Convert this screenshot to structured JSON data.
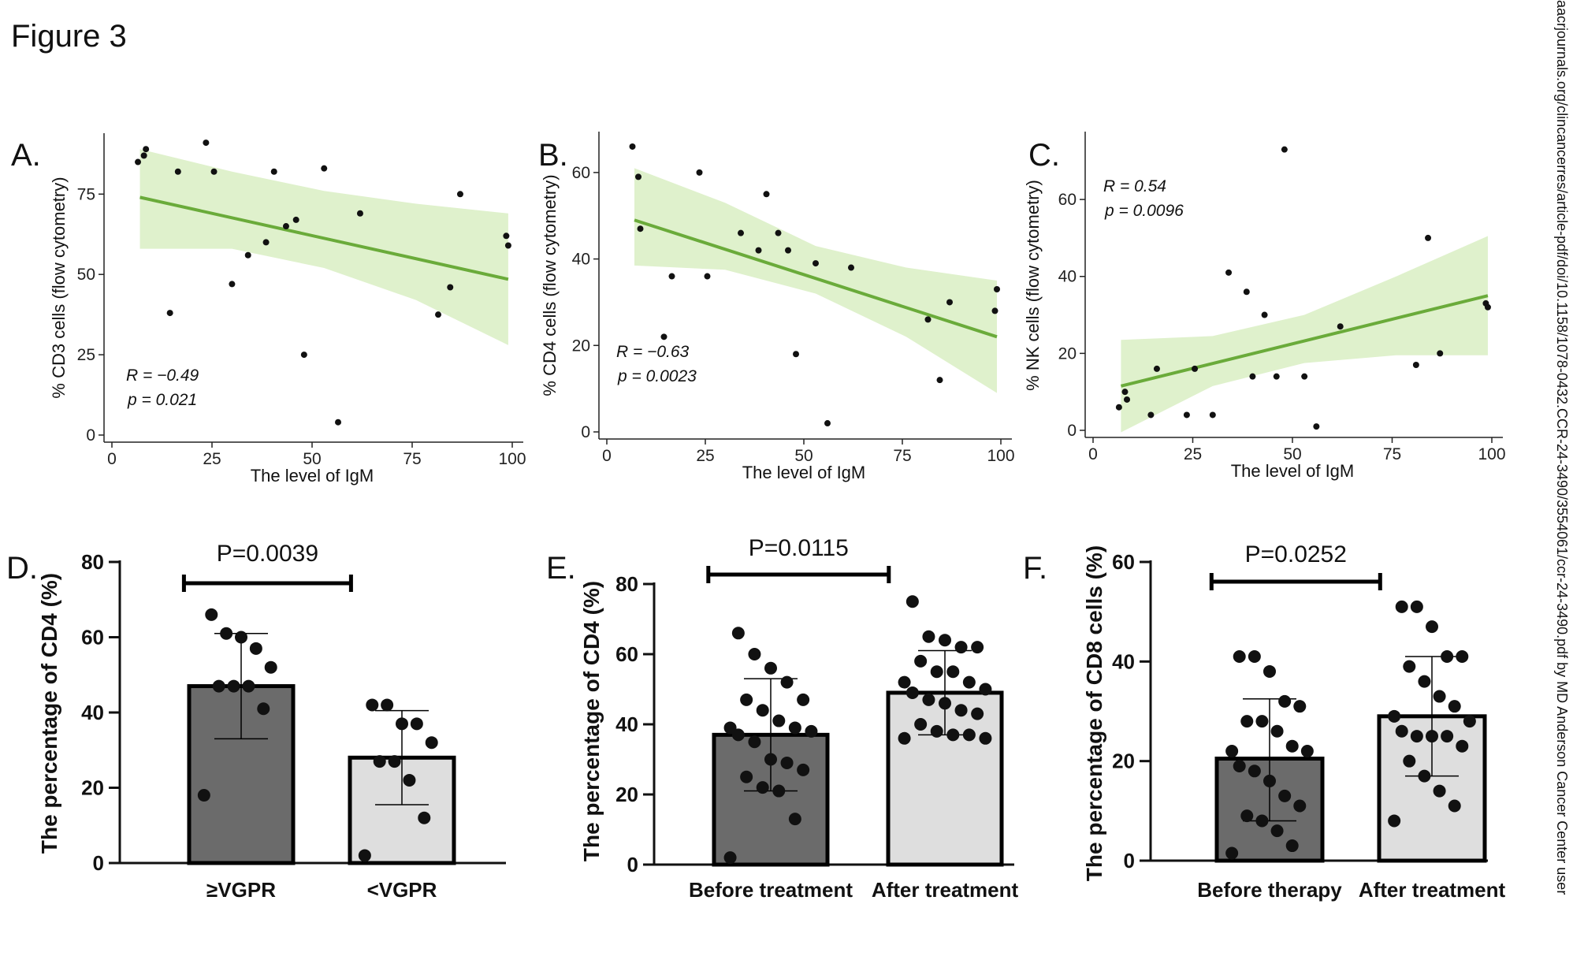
{
  "figure_title": "Figure 3",
  "watermark": "aacrjournals.org/clincancerres/article-pdf/doi/10.1158/1078-0432.CCR-24-3490/3554061/ccr-24-3490.pdf by MD Anderson Cancer Center user",
  "colors": {
    "fit_line": "#6aab3a",
    "ci_band": "#dff1cc",
    "point": "#111111",
    "bar_dark": "#6b6b6b",
    "bar_light": "#dedede"
  },
  "chart_data": [
    {
      "type": "scatter",
      "panel": "A.",
      "xlabel": "The level of IgM",
      "ylabel": "% CD3 cells (flow cytometry)",
      "xlim": [
        0,
        100
      ],
      "ylim": [
        0,
        92
      ],
      "xticks": [
        0,
        25,
        50,
        75,
        100
      ],
      "yticks": [
        0,
        25,
        50,
        75
      ],
      "stat_r": "R = −0.49",
      "stat_p": "p = 0.021",
      "fit": {
        "x": [
          7,
          99
        ],
        "y": [
          74,
          48.5
        ]
      },
      "ci_upper": [
        [
          7,
          89
        ],
        [
          30,
          82
        ],
        [
          53,
          76
        ],
        [
          76,
          72
        ],
        [
          99,
          69
        ]
      ],
      "ci_lower": [
        [
          7,
          58
        ],
        [
          30,
          58
        ],
        [
          53,
          52
        ],
        [
          76,
          42
        ],
        [
          99,
          28
        ]
      ],
      "points": [
        [
          6.5,
          85
        ],
        [
          8,
          87
        ],
        [
          8.5,
          89
        ],
        [
          14.5,
          38
        ],
        [
          16.5,
          82
        ],
        [
          23.5,
          91
        ],
        [
          25.5,
          82
        ],
        [
          30,
          47
        ],
        [
          34,
          56
        ],
        [
          38.5,
          60
        ],
        [
          40.5,
          82
        ],
        [
          43.5,
          65
        ],
        [
          46,
          67
        ],
        [
          48,
          25
        ],
        [
          53,
          83
        ],
        [
          56.5,
          4
        ],
        [
          62,
          69
        ],
        [
          81.5,
          37.5
        ],
        [
          84.5,
          46
        ],
        [
          87,
          75
        ],
        [
          98.5,
          62
        ],
        [
          99,
          59
        ]
      ]
    },
    {
      "type": "scatter",
      "panel": "B.",
      "xlabel": "The level of IgM",
      "ylabel": "% CD4 cells (flow cytometry)",
      "xlim": [
        0,
        100
      ],
      "ylim": [
        0,
        68
      ],
      "xticks": [
        0,
        25,
        50,
        75,
        100
      ],
      "yticks": [
        0,
        20,
        40,
        60
      ],
      "stat_r": "R = −0.63",
      "stat_p": "p = 0.0023",
      "fit": {
        "x": [
          7,
          99
        ],
        "y": [
          49,
          22
        ]
      },
      "ci_upper": [
        [
          7,
          61
        ],
        [
          30,
          53
        ],
        [
          53,
          43
        ],
        [
          76,
          38
        ],
        [
          99,
          35
        ]
      ],
      "ci_lower": [
        [
          7,
          38.5
        ],
        [
          30,
          37.5
        ],
        [
          53,
          32
        ],
        [
          76,
          22
        ],
        [
          99,
          9
        ]
      ],
      "points": [
        [
          6.5,
          66
        ],
        [
          8,
          59
        ],
        [
          8.5,
          47
        ],
        [
          14.5,
          22
        ],
        [
          16.5,
          36
        ],
        [
          23.5,
          60
        ],
        [
          25.5,
          36
        ],
        [
          34,
          46
        ],
        [
          38.5,
          42
        ],
        [
          40.5,
          55
        ],
        [
          43.5,
          46
        ],
        [
          46,
          42
        ],
        [
          48,
          18
        ],
        [
          53,
          39
        ],
        [
          56,
          2
        ],
        [
          62,
          38
        ],
        [
          81.5,
          26
        ],
        [
          84.5,
          12
        ],
        [
          87,
          30
        ],
        [
          98.5,
          28
        ],
        [
          99,
          33
        ]
      ]
    },
    {
      "type": "scatter",
      "panel": "C.",
      "xlabel": "The level of IgM",
      "ylabel": "% NK cells (flow cytometry)",
      "xlim": [
        0,
        100
      ],
      "ylim": [
        0,
        76
      ],
      "xticks": [
        0,
        25,
        50,
        75,
        100
      ],
      "yticks": [
        0,
        20,
        40,
        60
      ],
      "stat_r": "R = 0.54",
      "stat_p": "p = 0.0096",
      "fit": {
        "x": [
          7,
          99
        ],
        "y": [
          11.5,
          35
        ]
      },
      "ci_upper": [
        [
          7,
          23.5
        ],
        [
          30,
          24.5
        ],
        [
          53,
          30
        ],
        [
          76,
          40
        ],
        [
          99,
          50.5
        ]
      ],
      "ci_lower": [
        [
          7,
          -0.5
        ],
        [
          30,
          11.5
        ],
        [
          53,
          17.5
        ],
        [
          76,
          19.5
        ],
        [
          99,
          19.5
        ]
      ],
      "points": [
        [
          6.5,
          6
        ],
        [
          8,
          10
        ],
        [
          8.5,
          8
        ],
        [
          14.5,
          4
        ],
        [
          16,
          16
        ],
        [
          23.5,
          4
        ],
        [
          25.5,
          16
        ],
        [
          30,
          4
        ],
        [
          34,
          41
        ],
        [
          38.5,
          36
        ],
        [
          40,
          14
        ],
        [
          43,
          30
        ],
        [
          46,
          14
        ],
        [
          48,
          73
        ],
        [
          53,
          14
        ],
        [
          56,
          1
        ],
        [
          62,
          27
        ],
        [
          81,
          17
        ],
        [
          84,
          50
        ],
        [
          87,
          20
        ],
        [
          98.5,
          33
        ],
        [
          99,
          32
        ]
      ]
    },
    {
      "type": "bar",
      "panel": "D.",
      "ylabel": "The percentage of CD4 (%)",
      "ylim": [
        0,
        80
      ],
      "yticks": [
        0,
        20,
        40,
        60,
        80
      ],
      "categories": [
        "≥VGPR",
        "<VGPR"
      ],
      "values": [
        47,
        28
      ],
      "sd_high": [
        61,
        40.5
      ],
      "sd_low": [
        33,
        15.5
      ],
      "pvalue": "P=0.0039",
      "points": [
        [
          66,
          61,
          60,
          57,
          52,
          47,
          47,
          47,
          41,
          18
        ],
        [
          42,
          42,
          37,
          37,
          32,
          27,
          27,
          22,
          12,
          2
        ]
      ]
    },
    {
      "type": "bar",
      "panel": "E.",
      "ylabel": "The percentage of CD4 (%)",
      "ylim": [
        0,
        80
      ],
      "yticks": [
        0,
        20,
        40,
        60,
        80
      ],
      "categories": [
        "Before treatment",
        "After treatment"
      ],
      "values": [
        37,
        49
      ],
      "sd_high": [
        53,
        61
      ],
      "sd_low": [
        21,
        37
      ],
      "pvalue": "P=0.0115",
      "points": [
        [
          66,
          60,
          56,
          52,
          47,
          47,
          44,
          41,
          39,
          39,
          38,
          37,
          35,
          30,
          29,
          27,
          25,
          22,
          21,
          13,
          2
        ],
        [
          75,
          65,
          64,
          62,
          62,
          58,
          55,
          55,
          52,
          52,
          50,
          49,
          47,
          46,
          44,
          43,
          40,
          38,
          37,
          37,
          36,
          36
        ]
      ]
    },
    {
      "type": "bar",
      "panel": "F.",
      "ylabel": "The percentage of CD8 cells (%)",
      "ylim": [
        0,
        60
      ],
      "yticks": [
        0,
        20,
        40,
        60
      ],
      "categories": [
        "Before therapy",
        "After treatment"
      ],
      "values": [
        20.5,
        29
      ],
      "sd_high": [
        32.5,
        41
      ],
      "sd_low": [
        8,
        17
      ],
      "pvalue": "P=0.0252",
      "points": [
        [
          41,
          41,
          38,
          32,
          31,
          28,
          28,
          26,
          23,
          22,
          22,
          19,
          18,
          16,
          13,
          11,
          9,
          8,
          6,
          3,
          1.5
        ],
        [
          51,
          51,
          47,
          41,
          41,
          39,
          36,
          33,
          31,
          29,
          28,
          26,
          25,
          25,
          25,
          23,
          20,
          17,
          14,
          11,
          8
        ]
      ]
    }
  ]
}
